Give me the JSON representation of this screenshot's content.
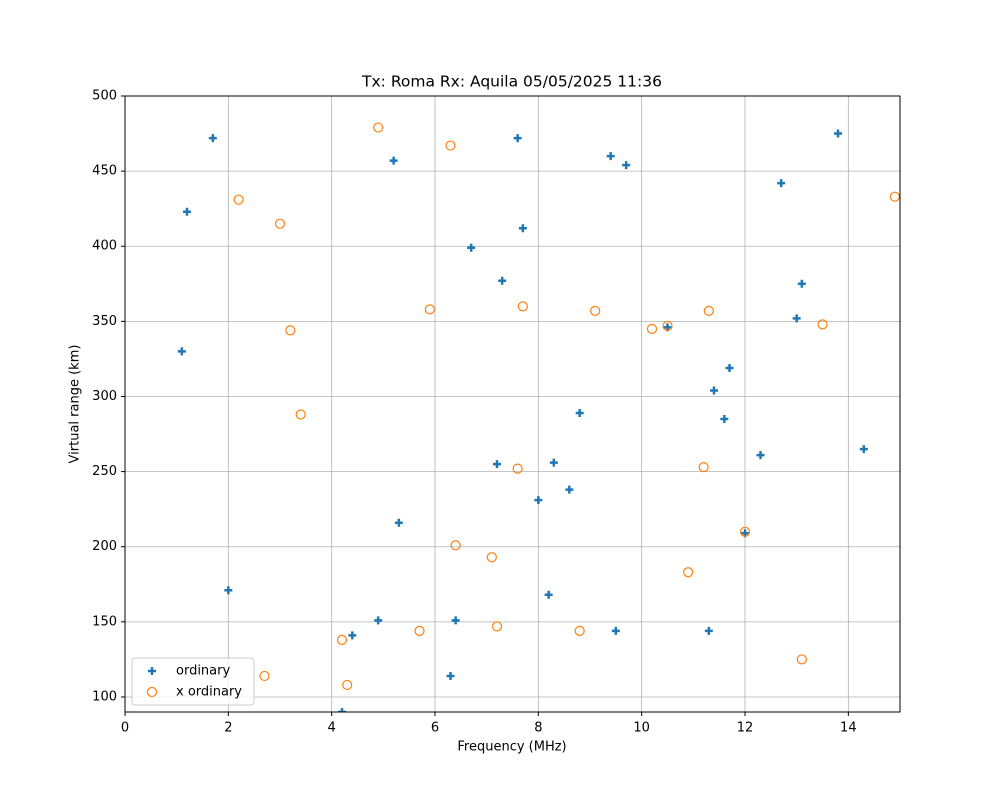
{
  "chart_data": {
    "type": "scatter",
    "title": "Tx: Roma Rx: Aquila 05/05/2025 11:36",
    "x_label": "Frequency (MHz)",
    "y_label": "Virtual range (km)",
    "xlim": [
      0,
      15
    ],
    "ylim": [
      90,
      500
    ],
    "xticks": [
      0,
      2,
      4,
      6,
      8,
      10,
      12,
      14
    ],
    "yticks": [
      100,
      150,
      200,
      250,
      300,
      350,
      400,
      450,
      500
    ],
    "grid": true,
    "legend": "lower left",
    "series": [
      {
        "name": "ordinary",
        "color": "#1f77b4",
        "marker": "plus",
        "x": [
          1.7,
          1.2,
          1.1,
          2.0,
          4.2,
          4.4,
          4.9,
          5.2,
          5.3,
          6.3,
          6.4,
          6.7,
          7.2,
          7.3,
          7.6,
          7.7,
          8.0,
          8.2,
          8.3,
          8.6,
          8.8,
          9.4,
          9.5,
          9.7,
          10.5,
          11.3,
          11.4,
          11.6,
          11.7,
          12.0,
          12.3,
          12.7,
          13.0,
          13.1,
          13.8,
          14.3
        ],
        "values": [
          472,
          423,
          330,
          171,
          90,
          141,
          151,
          457,
          216,
          114,
          151,
          399,
          255,
          377,
          472,
          412,
          231,
          168,
          256,
          238,
          289,
          460,
          144,
          454,
          346,
          144,
          304,
          285,
          319,
          209,
          261,
          442,
          352,
          375,
          475,
          265
        ]
      },
      {
        "name": "x ordinary",
        "color": "#ff7f0e",
        "marker": "circle",
        "x": [
          2.2,
          2.7,
          3.0,
          3.2,
          3.4,
          4.2,
          4.3,
          4.9,
          5.7,
          5.9,
          6.3,
          6.4,
          7.1,
          7.2,
          7.6,
          7.7,
          8.8,
          9.1,
          10.2,
          10.5,
          10.9,
          11.2,
          11.3,
          12.0,
          13.1,
          13.5,
          14.9
        ],
        "values": [
          431,
          114,
          415,
          344,
          288,
          138,
          108,
          479,
          144,
          358,
          467,
          201,
          193,
          147,
          252,
          360,
          144,
          357,
          345,
          347,
          183,
          253,
          357,
          210,
          125,
          348,
          433
        ]
      }
    ]
  }
}
